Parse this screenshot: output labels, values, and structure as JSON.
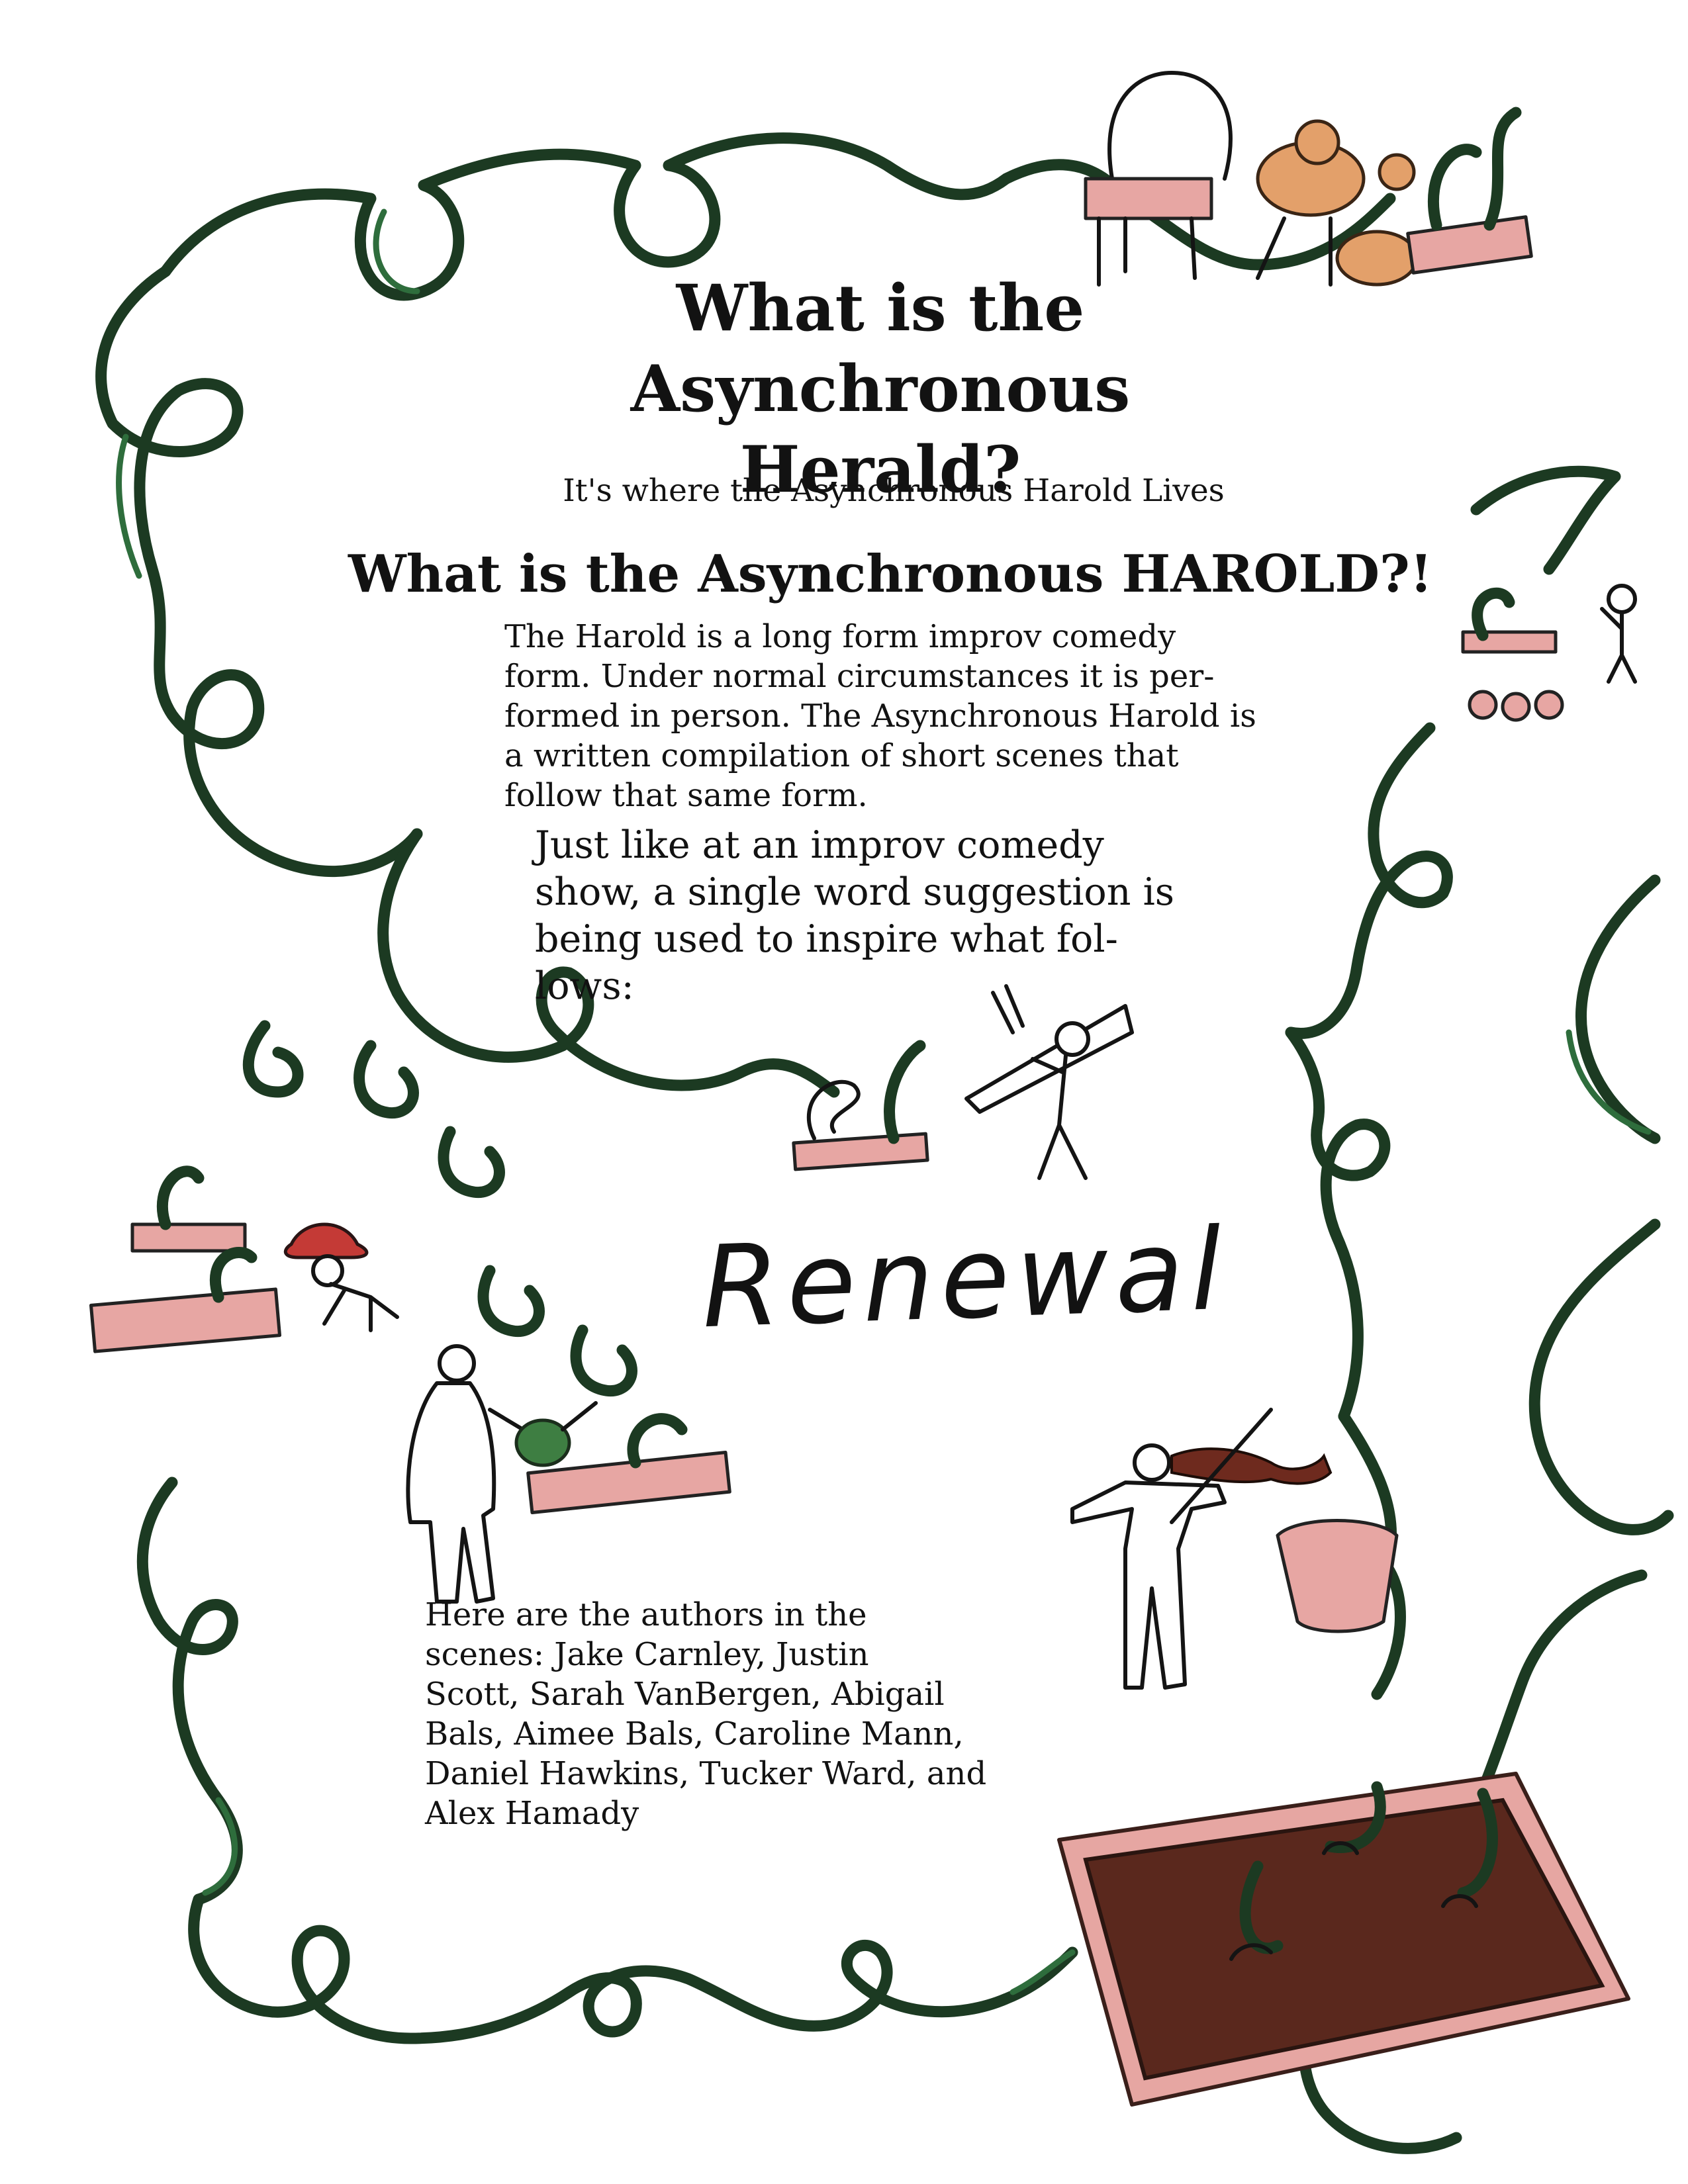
{
  "header": {
    "title": "What is the\nAsynchronous Herald?",
    "subtitle": "It's where the Asynchronous Harold Lives"
  },
  "section": {
    "heading": "What is the Asynchronous HAROLD?!",
    "intro": "The Harold is a long form improv comedy\nform. Under normal circumstances it is per-\nformed in person. The Asynchronous Harold is\na written compilation of short scenes that\nfollow that same form.",
    "suggestion_text": "Just like at an improv comedy\nshow, a single word suggestion is\nbeing used to inspire what fol-\nlows:",
    "suggestion_word": "Renewal"
  },
  "authors": {
    "text": "Here are the authors in the\nscenes: Jake Carnley, Justin\nScott, Sarah VanBergen, Abigail\nBals, Aimee Bals, Caroline Mann,\nDaniel Hawkins, Tucker Ward, and\nAlex Hamady"
  },
  "illustration": {
    "vine_color": "#1c3a22",
    "vine_highlight": "#2e6d3c",
    "planter_color": "#e7a6a3",
    "soil_color": "#5a281d"
  }
}
